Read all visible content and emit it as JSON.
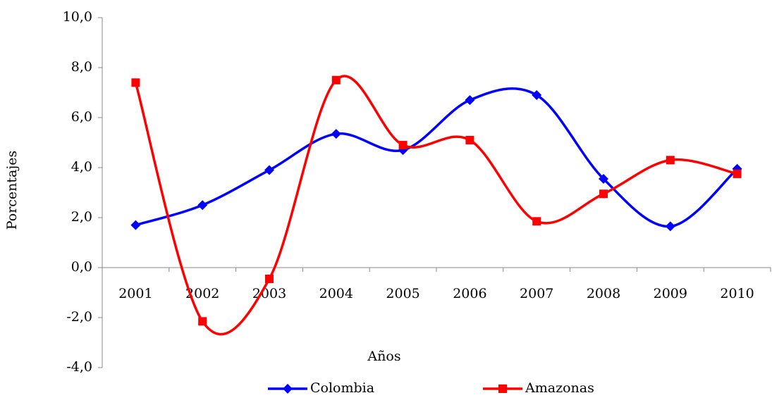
{
  "chart_data": {
    "type": "line",
    "smooth": true,
    "x_label": "Años",
    "y_label": "Porcentajes",
    "categories": [
      "2001",
      "2002",
      "2003",
      "2004",
      "2005",
      "2006",
      "2007",
      "2008",
      "2009",
      "2010"
    ],
    "series": [
      {
        "name": "Colombia",
        "color": "#0000ff",
        "marker": "diamond",
        "values": [
          1.7,
          2.5,
          3.9,
          5.35,
          4.7,
          6.7,
          6.9,
          3.55,
          1.65,
          3.95
        ]
      },
      {
        "name": "Amazonas",
        "color": "#ff0000",
        "marker": "square",
        "values": [
          7.4,
          -2.15,
          -0.45,
          7.5,
          4.9,
          5.1,
          1.85,
          2.95,
          4.3,
          3.75
        ]
      }
    ],
    "ylim": [
      -4,
      10
    ],
    "yticks": [
      {
        "value": -4,
        "label": "-4,0"
      },
      {
        "value": -2,
        "label": "-2,0"
      },
      {
        "value": 0,
        "label": "0,0"
      },
      {
        "value": 2,
        "label": "2,0"
      },
      {
        "value": 4,
        "label": "4,0"
      },
      {
        "value": 6,
        "label": "6,0"
      },
      {
        "value": 8,
        "label": "8,0"
      },
      {
        "value": 10,
        "label": "10,0"
      }
    ],
    "legend": "bottom"
  }
}
